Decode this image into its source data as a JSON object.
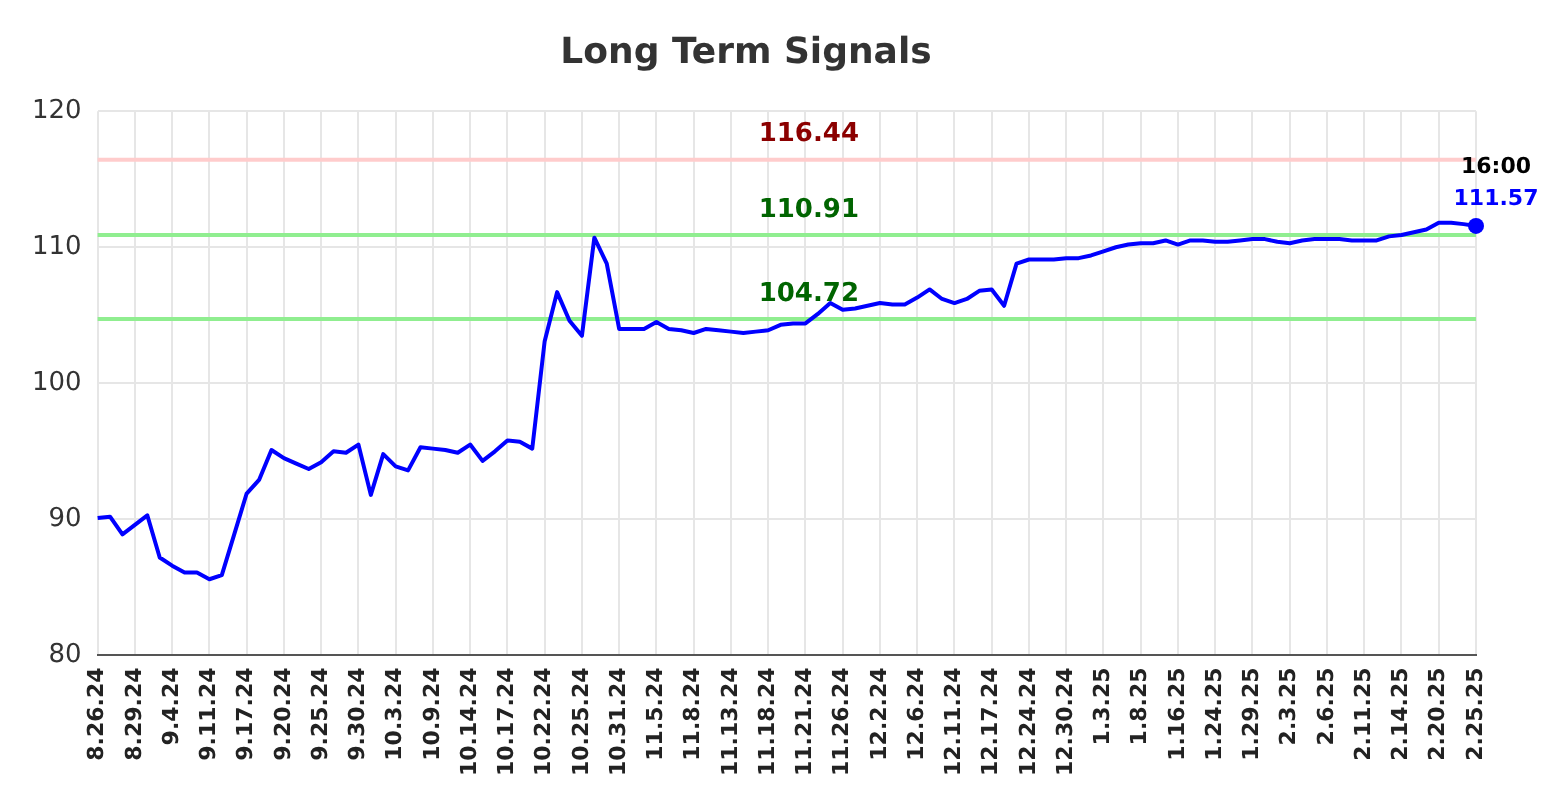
{
  "chart_data": {
    "type": "line",
    "title": "Long Term Signals",
    "categories": [
      "8.26.24",
      null,
      null,
      "8.29.24",
      null,
      null,
      "9.4.24",
      null,
      null,
      "9.11.24",
      null,
      null,
      "9.17.24",
      null,
      null,
      "9.20.24",
      null,
      null,
      "9.25.24",
      null,
      null,
      "9.30.24",
      null,
      null,
      "10.3.24",
      null,
      null,
      "10.9.24",
      null,
      null,
      "10.14.24",
      null,
      null,
      "10.17.24",
      null,
      null,
      "10.22.24",
      null,
      null,
      "10.25.24",
      null,
      null,
      "10.31.24",
      null,
      null,
      "11.5.24",
      null,
      null,
      "11.8.24",
      null,
      null,
      "11.13.24",
      null,
      null,
      "11.18.24",
      null,
      null,
      "11.21.24",
      null,
      null,
      "11.26.24",
      null,
      null,
      "12.2.24",
      null,
      null,
      "12.6.24",
      null,
      null,
      "12.11.24",
      null,
      null,
      "12.17.24",
      null,
      null,
      "12.24.24",
      null,
      null,
      "12.30.24",
      null,
      null,
      "1.3.25",
      null,
      null,
      "1.8.25",
      null,
      null,
      "1.16.25",
      null,
      null,
      "1.24.25",
      null,
      null,
      "1.29.25",
      null,
      null,
      "2.3.25",
      null,
      null,
      "2.6.25",
      null,
      null,
      "2.11.25",
      null,
      null,
      "2.14.25",
      null,
      null,
      "2.20.25",
      null,
      null,
      "2.25.25"
    ],
    "series": [
      {
        "color": "#0000ff",
        "values": [
          90.1,
          90.2,
          88.9,
          89.6,
          90.3,
          87.2,
          86.6,
          86.1,
          86.1,
          85.6,
          85.9,
          88.9,
          91.9,
          92.9,
          95.1,
          94.5,
          94.1,
          93.7,
          94.2,
          95.0,
          94.9,
          95.5,
          91.8,
          94.8,
          93.9,
          93.6,
          95.3,
          95.2,
          95.1,
          94.9,
          95.5,
          94.3,
          95.0,
          95.8,
          95.7,
          95.2,
          103.1,
          106.7,
          104.6,
          103.5,
          110.7,
          108.8,
          104.0,
          104.0,
          104.0,
          104.5,
          104.0,
          103.9,
          103.7,
          104.0,
          103.9,
          103.8,
          103.7,
          103.8,
          103.9,
          104.3,
          104.4,
          104.4,
          105.1,
          105.9,
          105.4,
          105.5,
          105.7,
          105.9,
          105.8,
          105.8,
          106.3,
          106.9,
          106.2,
          105.9,
          106.2,
          106.8,
          106.9,
          105.7,
          108.8,
          109.1,
          109.1,
          109.1,
          109.2,
          109.2,
          109.4,
          109.7,
          110.0,
          110.2,
          110.3,
          110.3,
          110.5,
          110.2,
          110.5,
          110.5,
          110.4,
          110.4,
          110.5,
          110.6,
          110.6,
          110.4,
          110.3,
          110.5,
          110.6,
          110.6,
          110.6,
          110.5,
          110.5,
          110.5,
          110.8,
          110.9,
          111.1,
          111.3,
          111.8,
          111.8,
          111.7,
          111.57
        ]
      }
    ],
    "ylim": [
      80,
      120
    ],
    "yticks": [
      80,
      90,
      100,
      110,
      120
    ],
    "grid": true,
    "legend": false,
    "marker": "none",
    "ref_lines": [
      {
        "axis": "y",
        "value": 116.44,
        "label": "116.44",
        "color": "#ffcccc"
      },
      {
        "axis": "y",
        "value": 110.91,
        "label": "110.91",
        "color": "#90ee90"
      },
      {
        "axis": "y",
        "value": 104.72,
        "label": "104.72",
        "color": "#90ee90"
      }
    ],
    "annotations": [
      {
        "text": "16:00",
        "x": "2.25.25",
        "y": 111.57
      },
      {
        "text": "111.57",
        "x": "2.25.25",
        "y": 111.57
      }
    ]
  }
}
